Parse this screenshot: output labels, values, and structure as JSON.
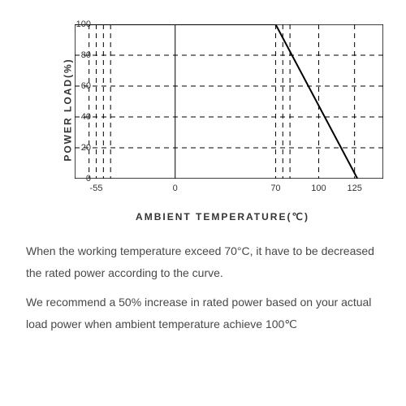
{
  "chart": {
    "type": "line",
    "ylabel": "POWER  LOAD(%)",
    "xlabel": "AMBIENT  TEMPERATURE(℃)",
    "xlim": [
      -70,
      145
    ],
    "ylim": [
      0,
      100
    ],
    "ytick_step": 20,
    "yticks": [
      0,
      20,
      40,
      60,
      80,
      100
    ],
    "xticks": [
      -55,
      0,
      70,
      100,
      125
    ],
    "vgrid_dashed": [
      -60,
      -55,
      -50,
      -45,
      70,
      75,
      80,
      100,
      125
    ],
    "vgrid_solid": [
      0,
      145
    ],
    "hgrid_dashed": [
      20,
      40,
      60,
      80
    ],
    "series": [
      {
        "x": -70,
        "y": 100
      },
      {
        "x": 70,
        "y": 100
      },
      {
        "x": 127,
        "y": 0
      }
    ],
    "line_width": 2,
    "line_color": "#000000",
    "border_color": "#000000",
    "grid_color": "#000000",
    "dash_pattern": "6,5",
    "background_color": "#ffffff",
    "label_fontsize": 12,
    "tick_fontsize": 11
  },
  "text": {
    "p1": "When the working temperature exceed 70°C, it have to be decreased the rated power according to the curve.",
    "p2": "We recommend a 50% increase in rated power based on your actual load power when ambient temperature achieve 100℃"
  }
}
